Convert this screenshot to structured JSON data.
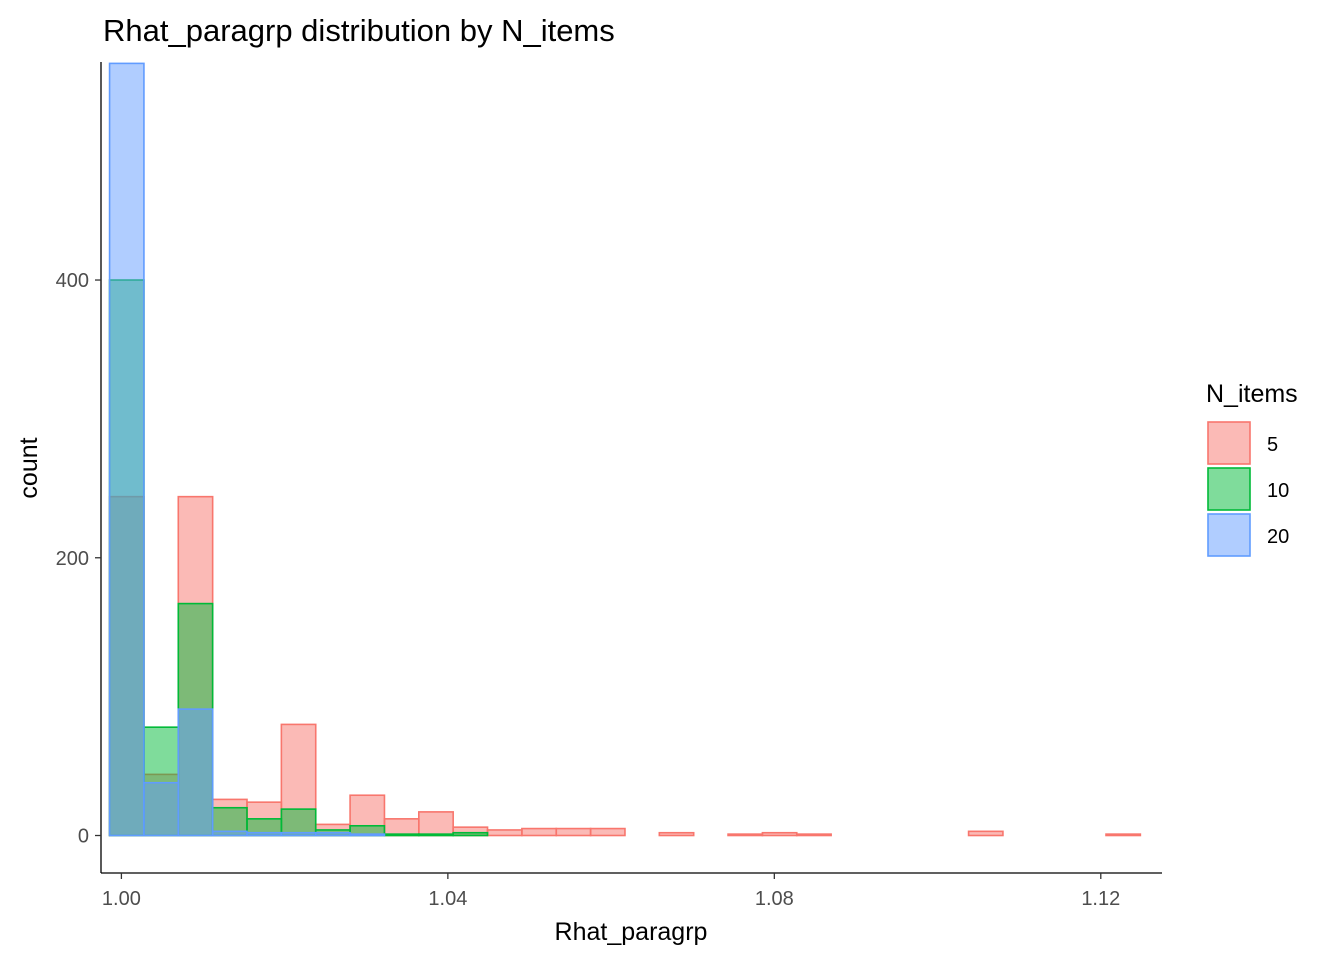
{
  "chart_data": {
    "type": "bar",
    "subtype": "histogram",
    "title": "Rhat_paragrp distribution by N_items",
    "xlabel": "Rhat_paragrp",
    "ylabel": "count",
    "xlim": [
      0.9975,
      1.1275
    ],
    "ylim": [
      -27,
      557
    ],
    "x_ticks": [
      1.0,
      1.04,
      1.08,
      1.12
    ],
    "x_tick_labels": [
      "1.00",
      "1.04",
      "1.08",
      "1.12"
    ],
    "y_ticks": [
      0,
      200,
      400
    ],
    "y_tick_labels": [
      "0",
      "200",
      "400"
    ],
    "grid": false,
    "bin_width": 0.00421,
    "bin_start": 0.99855,
    "legend": {
      "title": "N_items",
      "position": "right",
      "entries": [
        "5",
        "10",
        "20"
      ]
    },
    "series": [
      {
        "name": "5",
        "fill": "#F8766D",
        "stroke": "#F8766D",
        "counts": [
          244,
          44,
          244,
          26,
          24,
          80,
          8,
          29,
          12,
          17,
          6,
          4,
          5,
          5,
          5,
          0,
          2,
          0,
          1,
          2,
          1,
          0,
          0,
          0,
          0,
          3,
          0,
          0,
          0,
          1,
          0
        ]
      },
      {
        "name": "10",
        "fill": "#00BA38",
        "stroke": "#00BA38",
        "counts": [
          400,
          78,
          167,
          20,
          12,
          19,
          4,
          7,
          1,
          1,
          2,
          0,
          0,
          0,
          0,
          0,
          0,
          0,
          0,
          0,
          0,
          0,
          0,
          0,
          0,
          0,
          0,
          0,
          0,
          0,
          0
        ]
      },
      {
        "name": "20",
        "fill": "#619CFF",
        "stroke": "#619CFF",
        "counts": [
          556,
          38,
          91,
          3,
          2,
          2,
          2,
          1,
          0,
          0,
          0,
          0,
          0,
          0,
          0,
          0,
          0,
          0,
          0,
          0,
          0,
          0,
          0,
          0,
          0,
          0,
          0,
          0,
          0,
          0,
          0
        ]
      }
    ]
  }
}
